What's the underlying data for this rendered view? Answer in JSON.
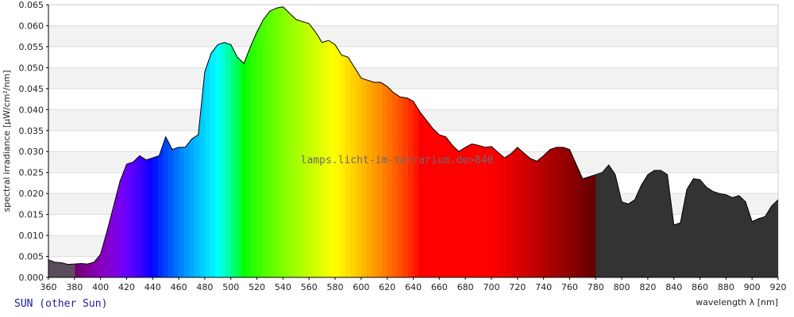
{
  "chart_data": {
    "type": "area",
    "xlabel": "wavelength λ [nm]",
    "ylabel": "spectral irradiance [µW/cm²/nm]",
    "xlim": [
      360,
      920
    ],
    "ylim": [
      0,
      0.065
    ],
    "x_ticks": [
      360,
      380,
      400,
      420,
      440,
      460,
      480,
      500,
      520,
      540,
      560,
      580,
      600,
      620,
      640,
      660,
      680,
      700,
      720,
      740,
      760,
      780,
      800,
      820,
      840,
      860,
      880,
      900,
      920
    ],
    "y_ticks": [
      "0.000",
      "0.005",
      "0.010",
      "0.015",
      "0.020",
      "0.025",
      "0.030",
      "0.035",
      "0.040",
      "0.045",
      "0.050",
      "0.055",
      "0.060",
      "0.065"
    ],
    "grid": "horizontal alternating bands",
    "watermark": "lamps.licht-im-terrarium.de>840",
    "caption": "SUN (other Sun)",
    "series": [
      {
        "x": [
          360,
          365,
          370,
          375,
          380,
          385,
          390,
          395,
          400,
          405,
          410,
          415,
          420,
          425,
          430,
          435,
          440,
          445,
          450,
          455,
          460,
          465,
          470,
          475,
          480,
          485,
          490,
          495,
          500,
          505,
          510,
          515,
          520,
          525,
          530,
          535,
          540,
          545,
          550,
          555,
          560,
          565,
          570,
          575,
          580,
          585,
          590,
          595,
          600,
          605,
          610,
          615,
          620,
          625,
          630,
          635,
          640,
          645,
          650,
          655,
          660,
          665,
          670,
          675,
          680,
          685,
          690,
          695,
          700,
          705,
          710,
          715,
          720,
          725,
          730,
          735,
          740,
          745,
          750,
          755,
          760,
          765,
          770,
          775,
          780,
          785,
          790,
          795,
          800,
          805,
          810,
          815,
          820,
          825,
          830,
          835,
          840,
          845,
          850,
          855,
          860,
          865,
          870,
          875,
          880,
          885,
          890,
          895,
          900,
          905,
          910,
          915,
          920
        ],
        "values": [
          0.0042,
          0.0036,
          0.0035,
          0.0031,
          0.0032,
          0.0033,
          0.0032,
          0.0036,
          0.0055,
          0.011,
          0.017,
          0.023,
          0.027,
          0.0275,
          0.029,
          0.028,
          0.0285,
          0.029,
          0.0335,
          0.0305,
          0.031,
          0.031,
          0.033,
          0.034,
          0.049,
          0.0535,
          0.0555,
          0.056,
          0.0555,
          0.0525,
          0.051,
          0.055,
          0.0585,
          0.0615,
          0.0635,
          0.0642,
          0.0645,
          0.063,
          0.0615,
          0.061,
          0.0605,
          0.0585,
          0.056,
          0.0565,
          0.0555,
          0.053,
          0.0525,
          0.05,
          0.0475,
          0.047,
          0.0465,
          0.0465,
          0.0455,
          0.044,
          0.043,
          0.0428,
          0.042,
          0.0395,
          0.0375,
          0.0355,
          0.034,
          0.0335,
          0.0315,
          0.03,
          0.031,
          0.0318,
          0.0315,
          0.031,
          0.0312,
          0.0298,
          0.0285,
          0.0295,
          0.031,
          0.0296,
          0.0283,
          0.0277,
          0.029,
          0.0305,
          0.031,
          0.031,
          0.0305,
          0.027,
          0.0235,
          0.024,
          0.0245,
          0.025,
          0.0268,
          0.0245,
          0.018,
          0.0175,
          0.0185,
          0.022,
          0.0245,
          0.0255,
          0.0255,
          0.0245,
          0.0125,
          0.013,
          0.021,
          0.0235,
          0.0233,
          0.0215,
          0.0205,
          0.02,
          0.0197,
          0.019,
          0.0195,
          0.018,
          0.0133,
          0.014,
          0.0145,
          0.017,
          0.0185
        ]
      }
    ],
    "colors": {
      "background": "#ffffff",
      "band": "#f2f2f2",
      "uv_fill": "#5a4e5c",
      "ir_fill": "#333333",
      "outline": "#000000"
    }
  }
}
